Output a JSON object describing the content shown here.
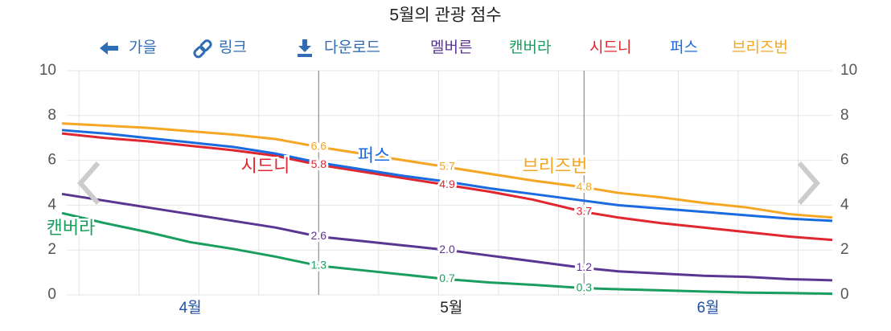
{
  "chart_data": {
    "type": "line",
    "title": "5월의 관광 점수",
    "toolbar": [
      "가을",
      "링크",
      "다운로드"
    ],
    "x": [
      0,
      5,
      10,
      15,
      20,
      25,
      30,
      35,
      40,
      45,
      50,
      55,
      61,
      65,
      70,
      75,
      80,
      85,
      90
    ],
    "xlim": [
      0,
      90
    ],
    "xticks": [
      {
        "value": 15,
        "label": "4월"
      },
      {
        "value": 45.5,
        "label": "5월"
      },
      {
        "value": 75.5,
        "label": "6월"
      }
    ],
    "xminorticks": [
      2,
      9,
      16,
      23,
      37,
      44,
      51,
      58,
      65,
      72,
      79,
      86
    ],
    "period_lines": [
      30,
      61
    ],
    "ylim": [
      0,
      10
    ],
    "yticks": [
      0,
      2,
      4,
      6,
      8,
      10
    ],
    "grid": true,
    "series": [
      {
        "name": "멜버른",
        "color": "#5b3592",
        "values": [
          4.5,
          4.2,
          3.9,
          3.6,
          3.3,
          3.0,
          2.6,
          2.4,
          2.2,
          2.0,
          1.75,
          1.5,
          1.2,
          1.05,
          0.95,
          0.85,
          0.8,
          0.7,
          0.65
        ],
        "value_labels": [
          null,
          null,
          null,
          null,
          null,
          null,
          "2.6",
          null,
          null,
          "2.0",
          null,
          null,
          "1.2",
          null,
          null,
          null,
          null,
          null,
          null
        ]
      },
      {
        "name": "캔버라",
        "color": "#1a9e5f",
        "values": [
          3.65,
          3.2,
          2.8,
          2.35,
          2.05,
          1.7,
          1.3,
          1.1,
          0.9,
          0.7,
          0.55,
          0.45,
          0.3,
          0.25,
          0.2,
          0.15,
          0.1,
          0.08,
          0.05
        ],
        "value_labels": [
          null,
          null,
          null,
          null,
          null,
          null,
          "1.3",
          null,
          null,
          "0.7",
          null,
          null,
          "0.3",
          null,
          null,
          null,
          null,
          null,
          null
        ]
      },
      {
        "name": "시드니",
        "color": "#e0262f",
        "values": [
          7.2,
          7.0,
          6.85,
          6.65,
          6.45,
          6.2,
          5.8,
          5.5,
          5.2,
          4.9,
          4.6,
          4.25,
          3.7,
          3.45,
          3.2,
          3.0,
          2.8,
          2.6,
          2.45
        ],
        "value_labels": [
          null,
          null,
          null,
          null,
          null,
          null,
          "5.8",
          null,
          null,
          "4.9",
          null,
          null,
          "3.7",
          null,
          null,
          null,
          null,
          null,
          null
        ]
      },
      {
        "name": "퍼스",
        "color": "#1a6be0",
        "values": [
          7.35,
          7.2,
          7.0,
          6.8,
          6.6,
          6.3,
          5.9,
          5.6,
          5.3,
          5.05,
          4.75,
          4.5,
          4.2,
          4.0,
          3.85,
          3.7,
          3.55,
          3.4,
          3.3
        ]
      },
      {
        "name": "브리즈번",
        "color": "#f5a623",
        "values": [
          7.65,
          7.55,
          7.45,
          7.3,
          7.15,
          6.95,
          6.6,
          6.3,
          6.0,
          5.7,
          5.4,
          5.1,
          4.8,
          4.55,
          4.35,
          4.1,
          3.9,
          3.6,
          3.45
        ],
        "value_labels": [
          null,
          null,
          null,
          null,
          null,
          null,
          "6.6",
          null,
          null,
          "5.7",
          null,
          null,
          "4.8",
          null,
          null,
          null,
          null,
          null,
          null
        ]
      }
    ]
  }
}
